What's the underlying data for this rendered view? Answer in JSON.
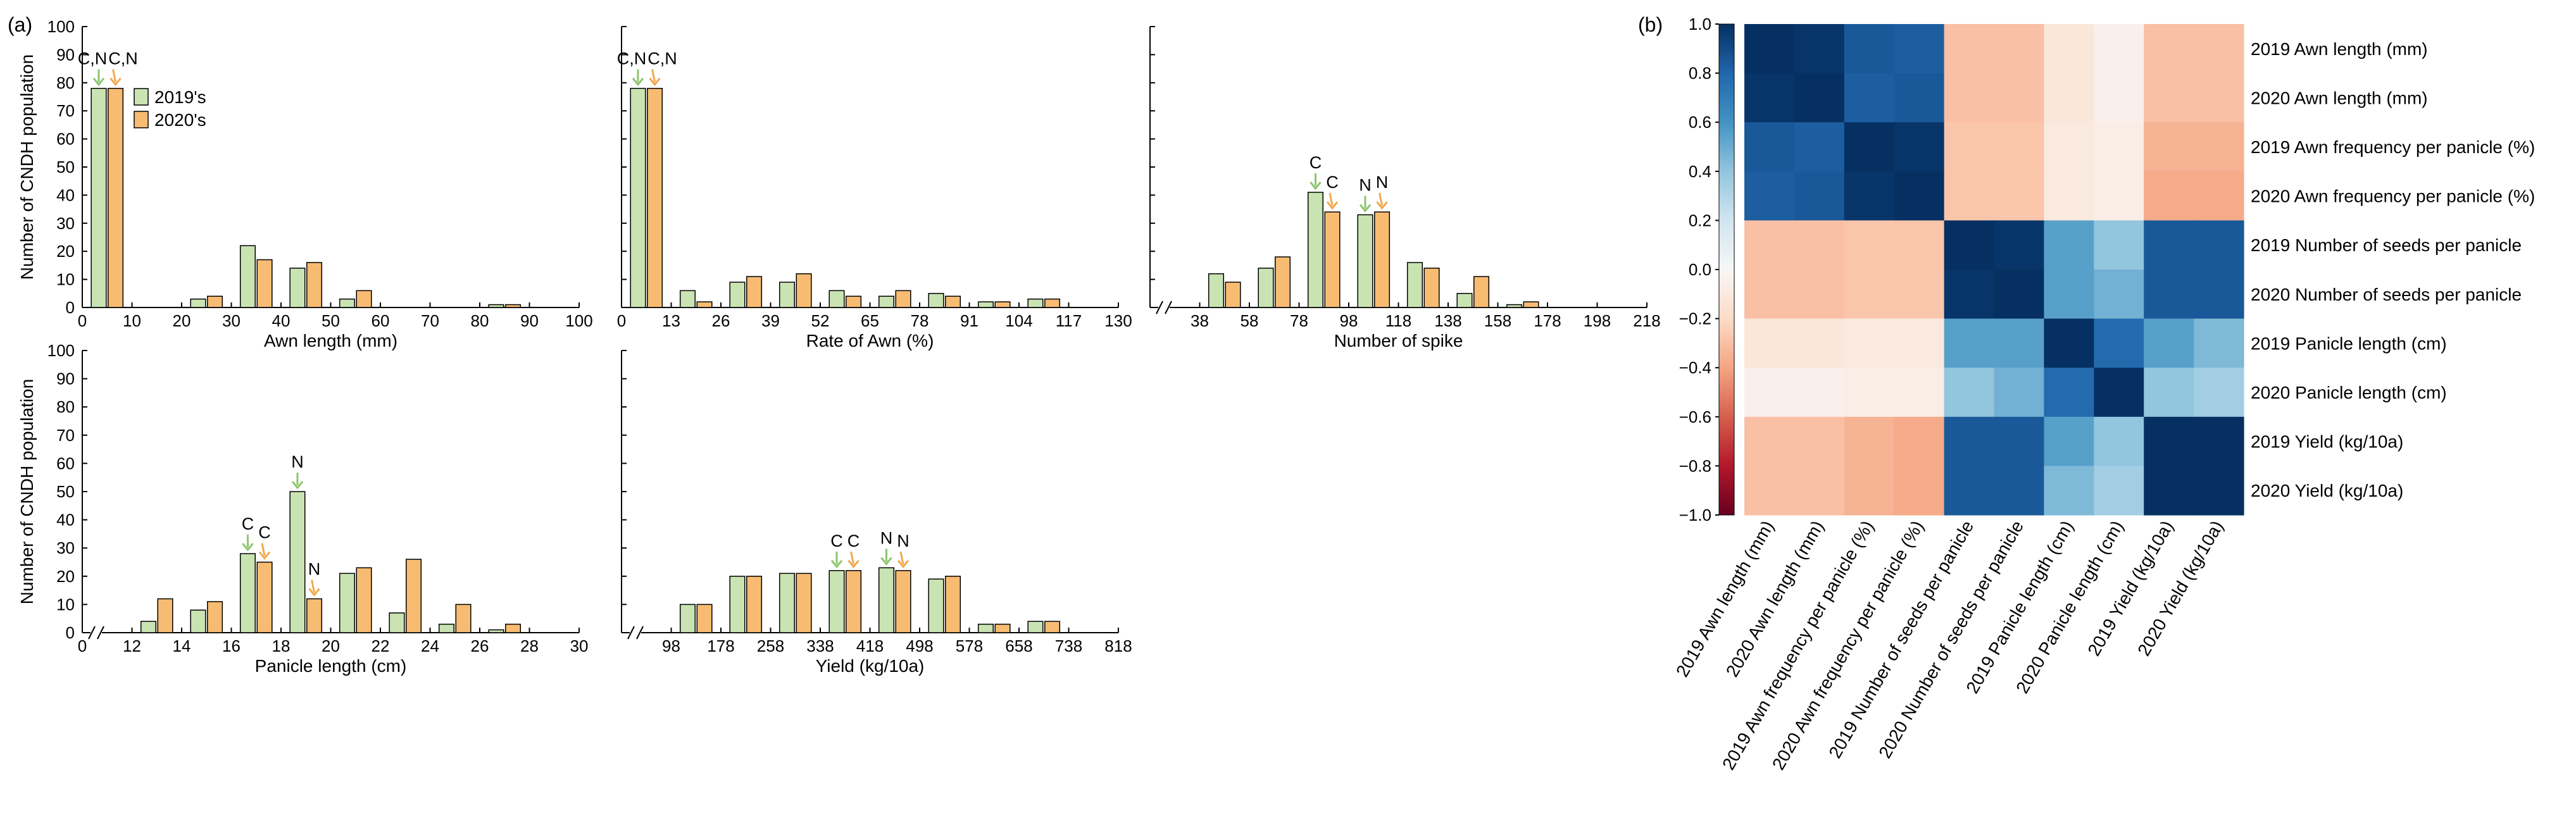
{
  "panel_labels": {
    "a": "(a)",
    "b": "(b)"
  },
  "colors": {
    "series2019": "#c9e3b3",
    "series2020": "#f7bb72",
    "arrow2019": "#8cc56c",
    "arrow2020": "#f2a84e"
  },
  "chart_data": [
    {
      "id": "awn",
      "type": "bar",
      "xlabel": "Awn length (mm)",
      "ylabel": "Number of CNDH population",
      "xlim": [
        0,
        100
      ],
      "ylim": [
        0,
        100
      ],
      "xbreak": false,
      "xticks": [
        "0",
        "10",
        "20",
        "30",
        "40",
        "50",
        "60",
        "70",
        "80",
        "90",
        "100"
      ],
      "xtick_values": [
        0,
        10,
        20,
        30,
        40,
        50,
        60,
        70,
        80,
        90,
        100
      ],
      "yticks": [
        "0",
        "10",
        "20",
        "30",
        "40",
        "50",
        "60",
        "70",
        "80",
        "90",
        "100"
      ],
      "legend": [
        "2019's",
        "2020's"
      ],
      "categories": [
        5,
        25,
        35,
        45,
        55,
        85
      ],
      "series": [
        {
          "name": "2019's",
          "values": [
            78,
            3,
            22,
            14,
            3,
            1
          ]
        },
        {
          "name": "2020's",
          "values": [
            78,
            4,
            17,
            16,
            6,
            1
          ]
        }
      ],
      "annotations": [
        {
          "text": "C,N",
          "category": 5,
          "series": 0
        },
        {
          "text": "C,N",
          "category": 5,
          "series": 1
        }
      ]
    },
    {
      "id": "rate",
      "type": "bar",
      "xlabel": "Rate of Awn (%)",
      "ylabel": "",
      "xlim": [
        0,
        130
      ],
      "ylim": [
        0,
        100
      ],
      "xbreak": false,
      "xticks": [
        "0",
        "13",
        "26",
        "39",
        "52",
        "65",
        "78",
        "91",
        "104",
        "117",
        "130"
      ],
      "xtick_values": [
        0,
        13,
        26,
        39,
        52,
        65,
        78,
        91,
        104,
        117,
        130
      ],
      "categories": [
        6.5,
        19.5,
        32.5,
        45.5,
        58.5,
        71.5,
        84.5,
        97.5,
        110.5
      ],
      "series": [
        {
          "name": "2019's",
          "values": [
            78,
            6,
            9,
            9,
            6,
            4,
            5,
            2,
            3
          ]
        },
        {
          "name": "2020's",
          "values": [
            78,
            2,
            11,
            12,
            4,
            6,
            4,
            2,
            3
          ]
        }
      ],
      "annotations": [
        {
          "text": "C,N",
          "category": 6.5,
          "series": 0
        },
        {
          "text": "C,N",
          "category": 6.5,
          "series": 1
        }
      ]
    },
    {
      "id": "spike",
      "type": "bar",
      "xlabel": "Number of spike",
      "ylabel": "",
      "xlim": [
        18,
        218
      ],
      "ylim": [
        0,
        100
      ],
      "xbreak": true,
      "xticks": [
        "38",
        "58",
        "78",
        "98",
        "118",
        "138",
        "158",
        "178",
        "198",
        "218"
      ],
      "xtick_values": [
        38,
        58,
        78,
        98,
        118,
        138,
        158,
        178,
        198,
        218
      ],
      "categories": [
        48,
        68,
        88,
        108,
        128,
        148,
        168
      ],
      "series": [
        {
          "name": "2019's",
          "values": [
            12,
            14,
            41,
            33,
            16,
            5,
            1
          ]
        },
        {
          "name": "2020's",
          "values": [
            9,
            18,
            34,
            34,
            14,
            11,
            2
          ]
        }
      ],
      "annotations": [
        {
          "text": "C",
          "category": 88,
          "series": 0
        },
        {
          "text": "C",
          "category": 88,
          "series": 1
        },
        {
          "text": "N",
          "category": 108,
          "series": 0
        },
        {
          "text": "N",
          "category": 108,
          "series": 1
        }
      ]
    },
    {
      "id": "panicle",
      "type": "bar",
      "xlabel": "Panicle length (cm)",
      "ylabel": "Number of CNDH population",
      "xlim": [
        10,
        30
      ],
      "ylim": [
        0,
        100
      ],
      "xbreak": true,
      "xticks": [
        "0",
        "12",
        "14",
        "16",
        "18",
        "20",
        "22",
        "24",
        "26",
        "28",
        "30"
      ],
      "xtick_values": [
        10,
        12,
        14,
        16,
        18,
        20,
        22,
        24,
        26,
        28,
        30
      ],
      "yticks": [
        "0",
        "10",
        "20",
        "30",
        "40",
        "50",
        "60",
        "70",
        "80",
        "90",
        "100"
      ],
      "categories": [
        13,
        15,
        17,
        19,
        21,
        23,
        25,
        27
      ],
      "series": [
        {
          "name": "2019's",
          "values": [
            4,
            8,
            28,
            50,
            21,
            7,
            3,
            1
          ]
        },
        {
          "name": "2020's",
          "values": [
            12,
            11,
            25,
            12,
            23,
            26,
            10,
            3
          ]
        }
      ],
      "annotations": [
        {
          "text": "C",
          "category": 17,
          "series": 0
        },
        {
          "text": "C",
          "category": 17,
          "series": 1
        },
        {
          "text": "N",
          "category": 19,
          "series": 0
        },
        {
          "text": "N",
          "category": 19,
          "series": 1
        }
      ]
    },
    {
      "id": "yield",
      "type": "bar",
      "xlabel": "Yield (kg/10a)",
      "ylabel": "",
      "xlim": [
        18,
        818
      ],
      "ylim": [
        0,
        100
      ],
      "xbreak": true,
      "xticks": [
        "98",
        "178",
        "258",
        "338",
        "418",
        "498",
        "578",
        "658",
        "738",
        "818"
      ],
      "xtick_values": [
        98,
        178,
        258,
        338,
        418,
        498,
        578,
        658,
        738,
        818
      ],
      "categories": [
        138,
        218,
        298,
        378,
        458,
        538,
        618,
        698
      ],
      "series": [
        {
          "name": "2019's",
          "values": [
            10,
            20,
            21,
            22,
            23,
            19,
            3,
            4
          ]
        },
        {
          "name": "2020's",
          "values": [
            10,
            20,
            21,
            22,
            22,
            20,
            3,
            4
          ]
        }
      ],
      "annotations": [
        {
          "text": "C",
          "category": 378,
          "series": 0
        },
        {
          "text": "C",
          "category": 378,
          "series": 1
        },
        {
          "text": "N",
          "category": 458,
          "series": 0
        },
        {
          "text": "N",
          "category": 458,
          "series": 1
        }
      ]
    },
    {
      "id": "corr",
      "type": "heatmap",
      "labels": [
        "2019 Awn length (mm)",
        "2020 Awn length (mm)",
        "2019 Awn frequency per panicle (%)",
        "2020 Awn frequency per panicle (%)",
        "2019 Number of seeds per panicle",
        "2020 Number of seeds per panicle",
        "2019 Panicle length (cm)",
        "2020 Panicle length (cm)",
        "2019 Yield (kg/10a)",
        "2020 Yield (kg/10a)"
      ],
      "colorbar": {
        "min": -1.0,
        "max": 1.0,
        "ticks": [
          "1.0",
          "0.8",
          "0.6",
          "0.4",
          "0.2",
          "0.0",
          "−0.2",
          "−0.4",
          "−0.6",
          "−0.8",
          "−1.0"
        ],
        "tick_values": [
          1.0,
          0.8,
          0.6,
          0.4,
          0.2,
          0.0,
          -0.2,
          -0.4,
          -0.6,
          -0.8,
          -1.0
        ]
      },
      "matrix": [
        [
          1.0,
          0.98,
          0.85,
          0.83,
          -0.3,
          -0.3,
          -0.12,
          -0.05,
          -0.3,
          -0.3
        ],
        [
          0.98,
          1.0,
          0.83,
          0.85,
          -0.3,
          -0.3,
          -0.12,
          -0.05,
          -0.3,
          -0.3
        ],
        [
          0.85,
          0.83,
          1.0,
          0.98,
          -0.28,
          -0.28,
          -0.1,
          -0.07,
          -0.35,
          -0.35
        ],
        [
          0.83,
          0.85,
          0.98,
          1.0,
          -0.28,
          -0.28,
          -0.1,
          -0.07,
          -0.38,
          -0.38
        ],
        [
          -0.3,
          -0.3,
          -0.28,
          -0.28,
          1.0,
          0.98,
          0.55,
          0.4,
          0.85,
          0.85
        ],
        [
          -0.3,
          -0.3,
          -0.28,
          -0.28,
          0.98,
          1.0,
          0.55,
          0.48,
          0.85,
          0.85
        ],
        [
          -0.12,
          -0.12,
          -0.1,
          -0.1,
          0.55,
          0.55,
          1.0,
          0.78,
          0.55,
          0.45
        ],
        [
          -0.05,
          -0.05,
          -0.07,
          -0.07,
          0.4,
          0.48,
          0.78,
          1.0,
          0.4,
          0.35
        ],
        [
          -0.3,
          -0.3,
          -0.35,
          -0.38,
          0.85,
          0.85,
          0.55,
          0.4,
          1.0,
          1.0
        ],
        [
          -0.3,
          -0.3,
          -0.35,
          -0.38,
          0.85,
          0.85,
          0.45,
          0.35,
          1.0,
          1.0
        ]
      ]
    }
  ]
}
